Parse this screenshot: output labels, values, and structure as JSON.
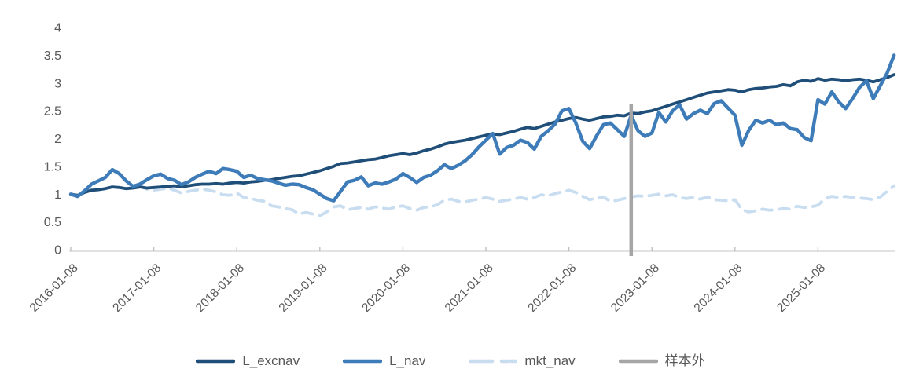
{
  "page": {
    "background": "#FFFFFF",
    "title": ""
  },
  "chart_data": {
    "type": "line",
    "title": "",
    "xlabel": "",
    "ylabel": "",
    "grid": false,
    "legend_position": "bottom",
    "axis_color": "#D9D9D9",
    "tick_color": "#BFBFBF",
    "label_color": "#595959",
    "x_unit": "month",
    "x": [
      "2016-01",
      "2016-02",
      "2016-03",
      "2016-04",
      "2016-05",
      "2016-06",
      "2016-07",
      "2016-08",
      "2016-09",
      "2016-10",
      "2016-11",
      "2016-12",
      "2017-01",
      "2017-02",
      "2017-03",
      "2017-04",
      "2017-05",
      "2017-06",
      "2017-07",
      "2017-08",
      "2017-09",
      "2017-10",
      "2017-11",
      "2017-12",
      "2018-01",
      "2018-02",
      "2018-03",
      "2018-04",
      "2018-05",
      "2018-06",
      "2018-07",
      "2018-08",
      "2018-09",
      "2018-10",
      "2018-11",
      "2018-12",
      "2019-01",
      "2019-02",
      "2019-03",
      "2019-04",
      "2019-05",
      "2019-06",
      "2019-07",
      "2019-08",
      "2019-09",
      "2019-10",
      "2019-11",
      "2019-12",
      "2020-01",
      "2020-02",
      "2020-03",
      "2020-04",
      "2020-05",
      "2020-06",
      "2020-07",
      "2020-08",
      "2020-09",
      "2020-10",
      "2020-11",
      "2020-12",
      "2021-01",
      "2021-02",
      "2021-03",
      "2021-04",
      "2021-05",
      "2021-06",
      "2021-07",
      "2021-08",
      "2021-09",
      "2021-10",
      "2021-11",
      "2021-12",
      "2022-01",
      "2022-02",
      "2022-03",
      "2022-04",
      "2022-05",
      "2022-06",
      "2022-07",
      "2022-08",
      "2022-09",
      "2022-10",
      "2022-11",
      "2022-12",
      "2023-01",
      "2023-02",
      "2023-03",
      "2023-04",
      "2023-05",
      "2023-06",
      "2023-07",
      "2023-08",
      "2023-09",
      "2023-10",
      "2023-11",
      "2023-12",
      "2024-01",
      "2024-02",
      "2024-03",
      "2024-04",
      "2024-05",
      "2024-06",
      "2024-07",
      "2024-08",
      "2024-09",
      "2024-10",
      "2024-11",
      "2024-12",
      "2025-01",
      "2025-02",
      "2025-03",
      "2025-04",
      "2025-05",
      "2025-06",
      "2025-07",
      "2025-08",
      "2025-09",
      "2025-10",
      "2025-11",
      "2025-12"
    ],
    "x_axis": {
      "tick_every_months": 12,
      "tick_labels": [
        "2016-01-08",
        "2017-01-08",
        "2018-01-08",
        "2019-01-08",
        "2020-01-08",
        "2021-01-08",
        "2022-01-08",
        "2023-01-08",
        "2024-01-08",
        "2025-01-08"
      ],
      "label_rotation_deg": -45
    },
    "y_axis": {
      "min": 0,
      "max": 4,
      "tick_step": 0.5,
      "tick_labels": [
        "0",
        "0.5",
        "1",
        "1.5",
        "2",
        "2.5",
        "3",
        "3.5",
        "4"
      ]
    },
    "series": [
      {
        "name": "L_excnav",
        "color": "#1F4E79",
        "style": "solid",
        "values": [
          1.0,
          0.98,
          1.03,
          1.07,
          1.08,
          1.1,
          1.13,
          1.12,
          1.1,
          1.11,
          1.13,
          1.11,
          1.12,
          1.13,
          1.14,
          1.15,
          1.13,
          1.15,
          1.17,
          1.18,
          1.18,
          1.19,
          1.18,
          1.2,
          1.21,
          1.2,
          1.22,
          1.23,
          1.25,
          1.26,
          1.28,
          1.3,
          1.32,
          1.33,
          1.36,
          1.39,
          1.42,
          1.46,
          1.5,
          1.55,
          1.56,
          1.58,
          1.6,
          1.62,
          1.63,
          1.66,
          1.69,
          1.71,
          1.73,
          1.71,
          1.74,
          1.78,
          1.81,
          1.85,
          1.9,
          1.93,
          1.95,
          1.97,
          2.0,
          2.03,
          2.06,
          2.08,
          2.07,
          2.1,
          2.13,
          2.17,
          2.2,
          2.18,
          2.22,
          2.26,
          2.3,
          2.33,
          2.36,
          2.38,
          2.35,
          2.33,
          2.36,
          2.39,
          2.4,
          2.42,
          2.41,
          2.46,
          2.45,
          2.48,
          2.5,
          2.54,
          2.58,
          2.62,
          2.66,
          2.7,
          2.74,
          2.78,
          2.82,
          2.84,
          2.86,
          2.88,
          2.87,
          2.84,
          2.88,
          2.9,
          2.91,
          2.93,
          2.94,
          2.97,
          2.95,
          3.02,
          3.05,
          3.03,
          3.08,
          3.05,
          3.07,
          3.06,
          3.04,
          3.06,
          3.07,
          3.05,
          3.02,
          3.06,
          3.1,
          3.15
        ]
      },
      {
        "name": "L_nav",
        "color": "#3E7CB9",
        "style": "solid",
        "values": [
          1.0,
          0.96,
          1.06,
          1.18,
          1.24,
          1.3,
          1.44,
          1.37,
          1.24,
          1.14,
          1.18,
          1.26,
          1.33,
          1.36,
          1.28,
          1.25,
          1.17,
          1.22,
          1.3,
          1.36,
          1.41,
          1.37,
          1.46,
          1.44,
          1.41,
          1.3,
          1.34,
          1.28,
          1.26,
          1.24,
          1.2,
          1.16,
          1.18,
          1.17,
          1.12,
          1.08,
          1.0,
          0.92,
          0.88,
          1.05,
          1.22,
          1.25,
          1.31,
          1.15,
          1.2,
          1.18,
          1.22,
          1.27,
          1.37,
          1.3,
          1.21,
          1.3,
          1.34,
          1.42,
          1.53,
          1.46,
          1.52,
          1.6,
          1.71,
          1.85,
          1.97,
          2.09,
          1.72,
          1.84,
          1.88,
          1.97,
          1.93,
          1.81,
          2.04,
          2.14,
          2.26,
          2.5,
          2.54,
          2.28,
          1.95,
          1.82,
          2.05,
          2.25,
          2.28,
          2.16,
          2.04,
          2.42,
          2.14,
          2.04,
          2.1,
          2.47,
          2.3,
          2.5,
          2.61,
          2.35,
          2.45,
          2.51,
          2.45,
          2.63,
          2.68,
          2.55,
          2.42,
          1.88,
          2.15,
          2.33,
          2.28,
          2.33,
          2.25,
          2.28,
          2.18,
          2.16,
          2.02,
          1.96,
          2.7,
          2.62,
          2.84,
          2.66,
          2.54,
          2.72,
          2.92,
          3.04,
          2.72,
          2.95,
          3.18,
          3.5
        ]
      },
      {
        "name": "mkt_nav",
        "color": "#C9DDF1",
        "style": "dashed",
        "values": [
          1.0,
          0.97,
          1.04,
          1.09,
          1.07,
          1.1,
          1.13,
          1.12,
          1.1,
          1.12,
          1.14,
          1.09,
          1.07,
          1.09,
          1.11,
          1.07,
          1.02,
          1.05,
          1.07,
          1.09,
          1.07,
          1.04,
          0.99,
          0.98,
          1.02,
          0.94,
          0.92,
          0.89,
          0.87,
          0.79,
          0.77,
          0.74,
          0.72,
          0.64,
          0.67,
          0.64,
          0.61,
          0.68,
          0.77,
          0.79,
          0.72,
          0.74,
          0.76,
          0.73,
          0.77,
          0.75,
          0.73,
          0.77,
          0.79,
          0.74,
          0.71,
          0.76,
          0.77,
          0.81,
          0.89,
          0.91,
          0.87,
          0.86,
          0.89,
          0.91,
          0.94,
          0.91,
          0.87,
          0.89,
          0.91,
          0.94,
          0.91,
          0.94,
          0.99,
          0.97,
          1.01,
          1.04,
          1.07,
          1.03,
          0.96,
          0.9,
          0.93,
          0.95,
          0.87,
          0.89,
          0.92,
          0.95,
          0.97,
          0.96,
          0.98,
          1.0,
          0.97,
          0.99,
          0.94,
          0.92,
          0.94,
          0.91,
          0.95,
          0.9,
          0.89,
          0.88,
          0.9,
          0.72,
          0.68,
          0.7,
          0.73,
          0.71,
          0.72,
          0.74,
          0.73,
          0.78,
          0.76,
          0.77,
          0.8,
          0.92,
          0.96,
          0.94,
          0.96,
          0.94,
          0.93,
          0.92,
          0.9,
          0.95,
          1.05,
          1.15
        ]
      }
    ],
    "vline": {
      "label": "样本外",
      "x": "2022-10",
      "color": "#A6A6A6",
      "top_value": 2.62
    }
  }
}
